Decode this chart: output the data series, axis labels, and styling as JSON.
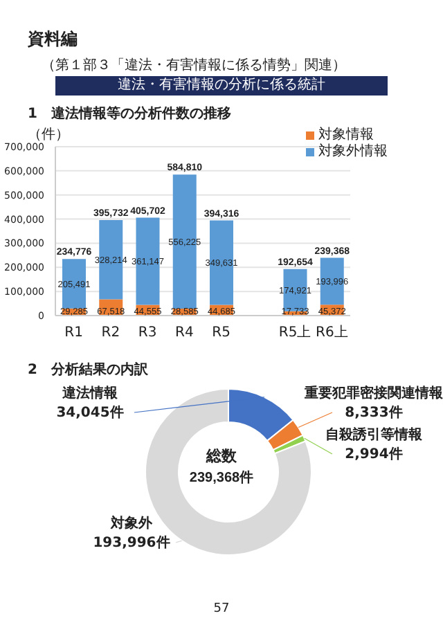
{
  "chart_data": [
    {
      "type": "bar",
      "title": "1　違法情報等の分析件数の推移",
      "ylabel": "（件）",
      "annotations": [
        "資料編",
        "（第１部３「違法・有害情報に係る情勢」関連）",
        "違法・有害情報の分析に係る統計"
      ],
      "categories": [
        "R1",
        "R2",
        "R3",
        "R4",
        "R5",
        null,
        "R5上",
        "R6上"
      ],
      "series": [
        {
          "name": "対象情報",
          "color": "#ed7d31",
          "values": [
            29285,
            67518,
            44555,
            28585,
            44685,
            null,
            17733,
            45372
          ],
          "value_labels": [
            "29,285",
            "67,518",
            "44,555",
            "28,585",
            "44,685",
            null,
            "17,733",
            "45,372"
          ]
        },
        {
          "name": "対象外情報",
          "color": "#5b9bd5",
          "values": [
            205491,
            328214,
            361147,
            556225,
            349631,
            null,
            174921,
            193996
          ],
          "value_labels": [
            "205,491",
            "328,214",
            "361,147",
            "556,225",
            "349,631",
            null,
            "174,921",
            "193,996"
          ]
        }
      ],
      "stacked": true,
      "totals": [
        "234,776",
        "395,732",
        "405,702",
        "584,810",
        "394,316",
        null,
        "192,654",
        "239,368"
      ],
      "ylim": [
        0,
        700000
      ],
      "yticks": [
        {
          "value": 0,
          "label": "0"
        },
        {
          "value": 100000,
          "label": "100,000"
        },
        {
          "value": 200000,
          "label": "200,000"
        },
        {
          "value": 300000,
          "label": "300,000"
        },
        {
          "value": 400000,
          "label": "400,000"
        },
        {
          "value": 500000,
          "label": "500,000"
        },
        {
          "value": 600000,
          "label": "600,000"
        },
        {
          "value": 700000,
          "label": "700,000"
        }
      ],
      "grid": "y",
      "legend": "top right"
    },
    {
      "type": "donut",
      "title": "2　分析結果の内訳",
      "annotations": [
        "総数",
        "239,368件",
        "57"
      ],
      "categories": [
        "違法情報",
        "重要犯罪密接関連情報",
        "自殺誘引等情報",
        "対象外"
      ],
      "values": [
        34045,
        8333,
        2994,
        193996
      ],
      "colors": [
        "#4472c4",
        "#ed7d31",
        "#92d050",
        "#d9d9d9"
      ],
      "value_labels": [
        "34,045件",
        "8,333件",
        "2,994件",
        "193,996件"
      ]
    }
  ]
}
